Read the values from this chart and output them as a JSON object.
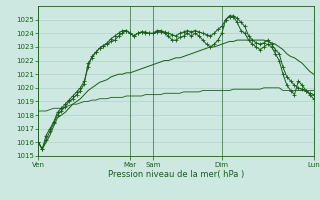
{
  "background_color": "#cce8e0",
  "grid_color": "#aacccc",
  "line_color": "#1a5c1a",
  "xlabel": "Pression niveau de la mer( hPa )",
  "ylim": [
    1015,
    1026
  ],
  "yticks": [
    1015,
    1016,
    1017,
    1018,
    1019,
    1020,
    1021,
    1022,
    1023,
    1024,
    1025
  ],
  "xtick_labels": [
    "Ven",
    "Mar",
    "Sam",
    "Dim",
    "Lun"
  ],
  "xtick_positions": [
    0,
    24,
    30,
    48,
    72
  ],
  "n_points": 73,
  "series1": [
    1016.0,
    1015.5,
    1016.5,
    1017.0,
    1017.5,
    1018.2,
    1018.5,
    1018.8,
    1019.1,
    1019.4,
    1019.7,
    1020.0,
    1020.5,
    1021.5,
    1022.3,
    1022.6,
    1022.9,
    1023.1,
    1023.3,
    1023.6,
    1023.8,
    1024.0,
    1024.2,
    1024.2,
    1024.0,
    1023.8,
    1024.0,
    1024.1,
    1024.1,
    1024.0,
    1024.0,
    1024.2,
    1024.2,
    1024.1,
    1024.0,
    1023.9,
    1023.8,
    1024.0,
    1024.1,
    1024.2,
    1024.1,
    1024.2,
    1024.1,
    1024.0,
    1023.9,
    1023.8,
    1024.0,
    1024.3,
    1024.5,
    1025.0,
    1025.2,
    1025.3,
    1025.1,
    1024.8,
    1024.5,
    1023.8,
    1023.5,
    1023.3,
    1023.2,
    1023.3,
    1023.5,
    1023.2,
    1022.8,
    1022.5,
    1021.5,
    1020.8,
    1020.5,
    1020.2,
    1020.0,
    1019.9,
    1019.8,
    1019.6,
    1019.5
  ],
  "series2": [
    1016.0,
    1015.5,
    1016.2,
    1016.8,
    1017.4,
    1018.0,
    1018.3,
    1018.6,
    1019.0,
    1019.2,
    1019.5,
    1019.8,
    1020.3,
    1021.8,
    1022.2,
    1022.6,
    1022.9,
    1023.1,
    1023.2,
    1023.4,
    1023.5,
    1023.8,
    1024.0,
    1024.2,
    1024.0,
    1023.8,
    1024.0,
    1024.1,
    1024.0,
    1024.0,
    1024.0,
    1024.1,
    1024.1,
    1024.0,
    1023.8,
    1023.5,
    1023.5,
    1023.7,
    1023.8,
    1024.0,
    1023.8,
    1024.0,
    1023.8,
    1023.5,
    1023.2,
    1023.0,
    1023.2,
    1023.5,
    1024.0,
    1025.0,
    1025.3,
    1025.2,
    1024.8,
    1024.2,
    1024.0,
    1023.5,
    1023.2,
    1023.0,
    1022.8,
    1023.0,
    1023.2,
    1023.0,
    1022.5,
    1022.0,
    1021.0,
    1020.2,
    1019.8,
    1019.5,
    1020.5,
    1020.2,
    1019.8,
    1019.5,
    1019.2
  ],
  "series3": [
    1018.3,
    1018.3,
    1018.3,
    1018.4,
    1018.5,
    1018.5,
    1018.5,
    1018.6,
    1018.7,
    1018.8,
    1018.8,
    1018.9,
    1019.0,
    1019.0,
    1019.1,
    1019.1,
    1019.2,
    1019.2,
    1019.2,
    1019.3,
    1019.3,
    1019.3,
    1019.3,
    1019.4,
    1019.4,
    1019.4,
    1019.4,
    1019.4,
    1019.5,
    1019.5,
    1019.5,
    1019.5,
    1019.5,
    1019.6,
    1019.6,
    1019.6,
    1019.6,
    1019.6,
    1019.7,
    1019.7,
    1019.7,
    1019.7,
    1019.7,
    1019.8,
    1019.8,
    1019.8,
    1019.8,
    1019.8,
    1019.8,
    1019.8,
    1019.8,
    1019.9,
    1019.9,
    1019.9,
    1019.9,
    1019.9,
    1019.9,
    1019.9,
    1019.9,
    1020.0,
    1020.0,
    1020.0,
    1020.0,
    1020.0,
    1019.8,
    1019.8,
    1019.8,
    1019.8,
    1019.8,
    1019.8,
    1019.8,
    1019.8,
    1019.8
  ],
  "series4": [
    1016.0,
    1015.5,
    1016.0,
    1016.5,
    1017.2,
    1017.8,
    1018.0,
    1018.2,
    1018.5,
    1018.8,
    1019.0,
    1019.2,
    1019.5,
    1019.8,
    1020.0,
    1020.2,
    1020.4,
    1020.5,
    1020.6,
    1020.8,
    1020.9,
    1021.0,
    1021.0,
    1021.1,
    1021.1,
    1021.2,
    1021.3,
    1021.4,
    1021.5,
    1021.6,
    1021.7,
    1021.8,
    1021.9,
    1022.0,
    1022.0,
    1022.1,
    1022.2,
    1022.2,
    1022.3,
    1022.4,
    1022.5,
    1022.6,
    1022.7,
    1022.8,
    1022.9,
    1023.0,
    1023.0,
    1023.1,
    1023.2,
    1023.3,
    1023.4,
    1023.4,
    1023.5,
    1023.5,
    1023.5,
    1023.5,
    1023.5,
    1023.5,
    1023.5,
    1023.5,
    1023.4,
    1023.3,
    1023.2,
    1023.0,
    1022.8,
    1022.5,
    1022.3,
    1022.2,
    1022.0,
    1021.8,
    1021.5,
    1021.2,
    1021.0
  ]
}
